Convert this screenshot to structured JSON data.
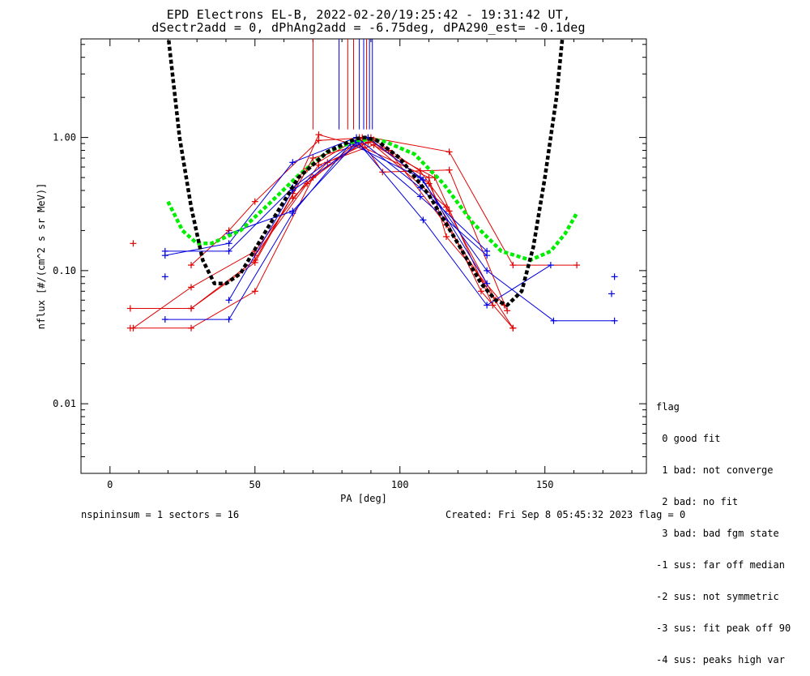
{
  "title_line1": "EPD Electrons EL-B, 2022-02-20/19:25:42 - 19:31:42 UT,",
  "title_line2": "dSectr2add = 0, dPhAng2add = -6.75deg, dPA290_est=  -0.1deg",
  "legend": {
    "title": "flag",
    "items": [
      " 0 good fit",
      " 1 bad: not converge",
      " 2 bad: no fit",
      " 3 bad: bad fgm state",
      "-1 sus: far off median",
      "-2 sus: not symmetric",
      "-3 sus: fit peak off 90",
      "-4 sus: peaks high var"
    ]
  },
  "footer_left": "nspininsum =  1  sectors = 16",
  "footer_right": "Created: Fri Sep  8 05:45:32 2023   flag = 0",
  "colors": {
    "red": "#e00000",
    "blue": "#0000e0",
    "green": "#00ee00",
    "black": "#000000"
  },
  "chart_data": {
    "type": "line",
    "xlabel": "PA [deg]",
    "ylabel": "nflux [#/(cm^2 s sr MeV)]",
    "xlim": [
      -10,
      185
    ],
    "ylim": [
      0.003,
      5.5
    ],
    "yscale": "log",
    "xticks": [
      0,
      50,
      100,
      150
    ],
    "yticks": [
      {
        "v": 0.01,
        "label": "0.01"
      },
      {
        "v": 0.1,
        "label": "0.10"
      },
      {
        "v": 1.0,
        "label": "1.00"
      }
    ],
    "vlines": [
      {
        "x": 70,
        "color": "red"
      },
      {
        "x": 79,
        "color": "blue"
      },
      {
        "x": 82,
        "color": "red"
      },
      {
        "x": 84,
        "color": "red"
      },
      {
        "x": 86,
        "color": "blue"
      },
      {
        "x": 87.5,
        "color": "blue"
      },
      {
        "x": 88.5,
        "color": "red"
      },
      {
        "x": 89.5,
        "color": "blue"
      },
      {
        "x": 90.5,
        "color": "blue"
      }
    ],
    "vline_bottom": 1.15,
    "series": [
      {
        "color": "red",
        "points": [
          [
            7,
            0.037
          ],
          [
            28,
            0.037
          ],
          [
            50,
            0.07
          ],
          [
            70,
            0.5
          ],
          [
            89,
            0.98
          ],
          [
            110,
            0.45
          ],
          [
            128,
            0.07
          ],
          [
            139,
            0.037
          ]
        ]
      },
      {
        "color": "red",
        "points": [
          [
            7,
            0.052
          ],
          [
            28,
            0.052
          ],
          [
            50,
            0.115
          ],
          [
            70,
            0.7
          ],
          [
            89,
            0.92
          ],
          [
            112,
            0.5
          ],
          [
            132,
            0.055
          ]
        ]
      },
      {
        "color": "red",
        "points": [
          [
            8,
            0.037
          ],
          [
            28,
            0.075
          ],
          [
            50,
            0.14
          ],
          [
            72,
            0.62
          ],
          [
            91,
            0.88
          ],
          [
            116,
            0.3
          ],
          [
            133,
            0.06
          ]
        ]
      },
      {
        "color": "red",
        "points": [
          [
            28,
            0.11
          ],
          [
            41,
            0.2
          ],
          [
            50,
            0.33
          ],
          [
            72,
            0.95
          ],
          [
            90,
            1.0
          ],
          [
            117,
            0.78
          ],
          [
            139,
            0.11
          ],
          [
            161,
            0.11
          ]
        ]
      },
      {
        "color": "red",
        "points": [
          [
            28,
            0.052
          ],
          [
            50,
            0.12
          ],
          [
            68,
            0.58
          ],
          [
            86,
            1.0
          ],
          [
            94,
            0.55
          ],
          [
            117,
            0.57
          ],
          [
            137,
            0.05
          ]
        ]
      },
      {
        "color": "red",
        "points": [
          [
            50,
            0.13
          ],
          [
            68,
            0.45
          ],
          [
            87,
            1.0
          ],
          [
            96,
            0.8
          ],
          [
            116,
            0.22
          ],
          [
            139,
            0.037
          ]
        ]
      },
      {
        "color": "red",
        "points": [
          [
            63,
            0.38
          ],
          [
            72,
            1.05
          ],
          [
            87,
            0.85
          ],
          [
            110,
            0.5
          ],
          [
            116,
            0.18
          ],
          [
            136,
            0.055
          ]
        ]
      },
      {
        "color": "red",
        "points": [
          [
            63,
            0.35
          ],
          [
            75,
            0.65
          ],
          [
            91,
            0.96
          ],
          [
            107,
            0.56
          ],
          [
            117,
            0.28
          ]
        ]
      },
      {
        "color": "blue",
        "points": [
          [
            19,
            0.043
          ],
          [
            41,
            0.043
          ],
          [
            63,
            0.27
          ],
          [
            83,
            0.9
          ],
          [
            107,
            0.5
          ],
          [
            130,
            0.1
          ],
          [
            153,
            0.042
          ],
          [
            174,
            0.042
          ]
        ]
      },
      {
        "color": "blue",
        "points": [
          [
            19,
            0.14
          ],
          [
            41,
            0.14
          ],
          [
            63,
            0.42
          ],
          [
            85,
            0.95
          ],
          [
            108,
            0.24
          ],
          [
            130,
            0.055
          ],
          [
            152,
            0.11
          ]
        ]
      },
      {
        "color": "blue",
        "points": [
          [
            19,
            0.13
          ],
          [
            41,
            0.16
          ],
          [
            63,
            0.65
          ],
          [
            85,
            1.0
          ],
          [
            107,
            0.42
          ],
          [
            130,
            0.14
          ]
        ]
      },
      {
        "color": "blue",
        "points": [
          [
            41,
            0.19
          ],
          [
            63,
            0.28
          ],
          [
            85,
            0.92
          ],
          [
            107,
            0.36
          ],
          [
            130,
            0.13
          ]
        ]
      },
      {
        "color": "blue",
        "points": [
          [
            41,
            0.06
          ],
          [
            63,
            0.4
          ],
          [
            89,
            1.0
          ],
          [
            108,
            0.48
          ],
          [
            130,
            0.08
          ]
        ]
      }
    ],
    "markers_only": [
      {
        "color": "red",
        "points": [
          [
            8,
            0.16
          ]
        ]
      },
      {
        "color": "blue",
        "points": [
          [
            19,
            0.09
          ],
          [
            173,
            0.067
          ],
          [
            174,
            0.09
          ]
        ]
      }
    ],
    "fits": [
      {
        "color": "green",
        "style": "dashed",
        "points": [
          [
            20,
            0.33
          ],
          [
            25,
            0.2
          ],
          [
            30,
            0.16
          ],
          [
            35,
            0.16
          ],
          [
            45,
            0.2
          ],
          [
            55,
            0.32
          ],
          [
            65,
            0.52
          ],
          [
            75,
            0.78
          ],
          [
            85,
            0.95
          ],
          [
            90,
            0.97
          ],
          [
            95,
            0.93
          ],
          [
            105,
            0.75
          ],
          [
            115,
            0.45
          ],
          [
            125,
            0.23
          ],
          [
            135,
            0.14
          ],
          [
            145,
            0.12
          ],
          [
            152,
            0.14
          ],
          [
            157,
            0.19
          ],
          [
            161,
            0.27
          ]
        ]
      },
      {
        "color": "black",
        "style": "dashed",
        "points": [
          [
            20,
            6.0
          ],
          [
            24,
            1.0
          ],
          [
            28,
            0.3
          ],
          [
            32,
            0.12
          ],
          [
            36,
            0.08
          ],
          [
            40,
            0.08
          ],
          [
            45,
            0.095
          ],
          [
            55,
            0.22
          ],
          [
            65,
            0.5
          ],
          [
            75,
            0.78
          ],
          [
            82,
            0.92
          ],
          [
            85,
            0.98
          ],
          [
            88,
            1.0
          ],
          [
            92,
            0.95
          ],
          [
            100,
            0.7
          ],
          [
            110,
            0.37
          ],
          [
            120,
            0.16
          ],
          [
            128,
            0.08
          ],
          [
            133,
            0.06
          ],
          [
            137,
            0.055
          ],
          [
            142,
            0.07
          ],
          [
            146,
            0.15
          ],
          [
            150,
            0.5
          ],
          [
            154,
            2.0
          ],
          [
            156,
            5.5
          ]
        ]
      }
    ]
  }
}
